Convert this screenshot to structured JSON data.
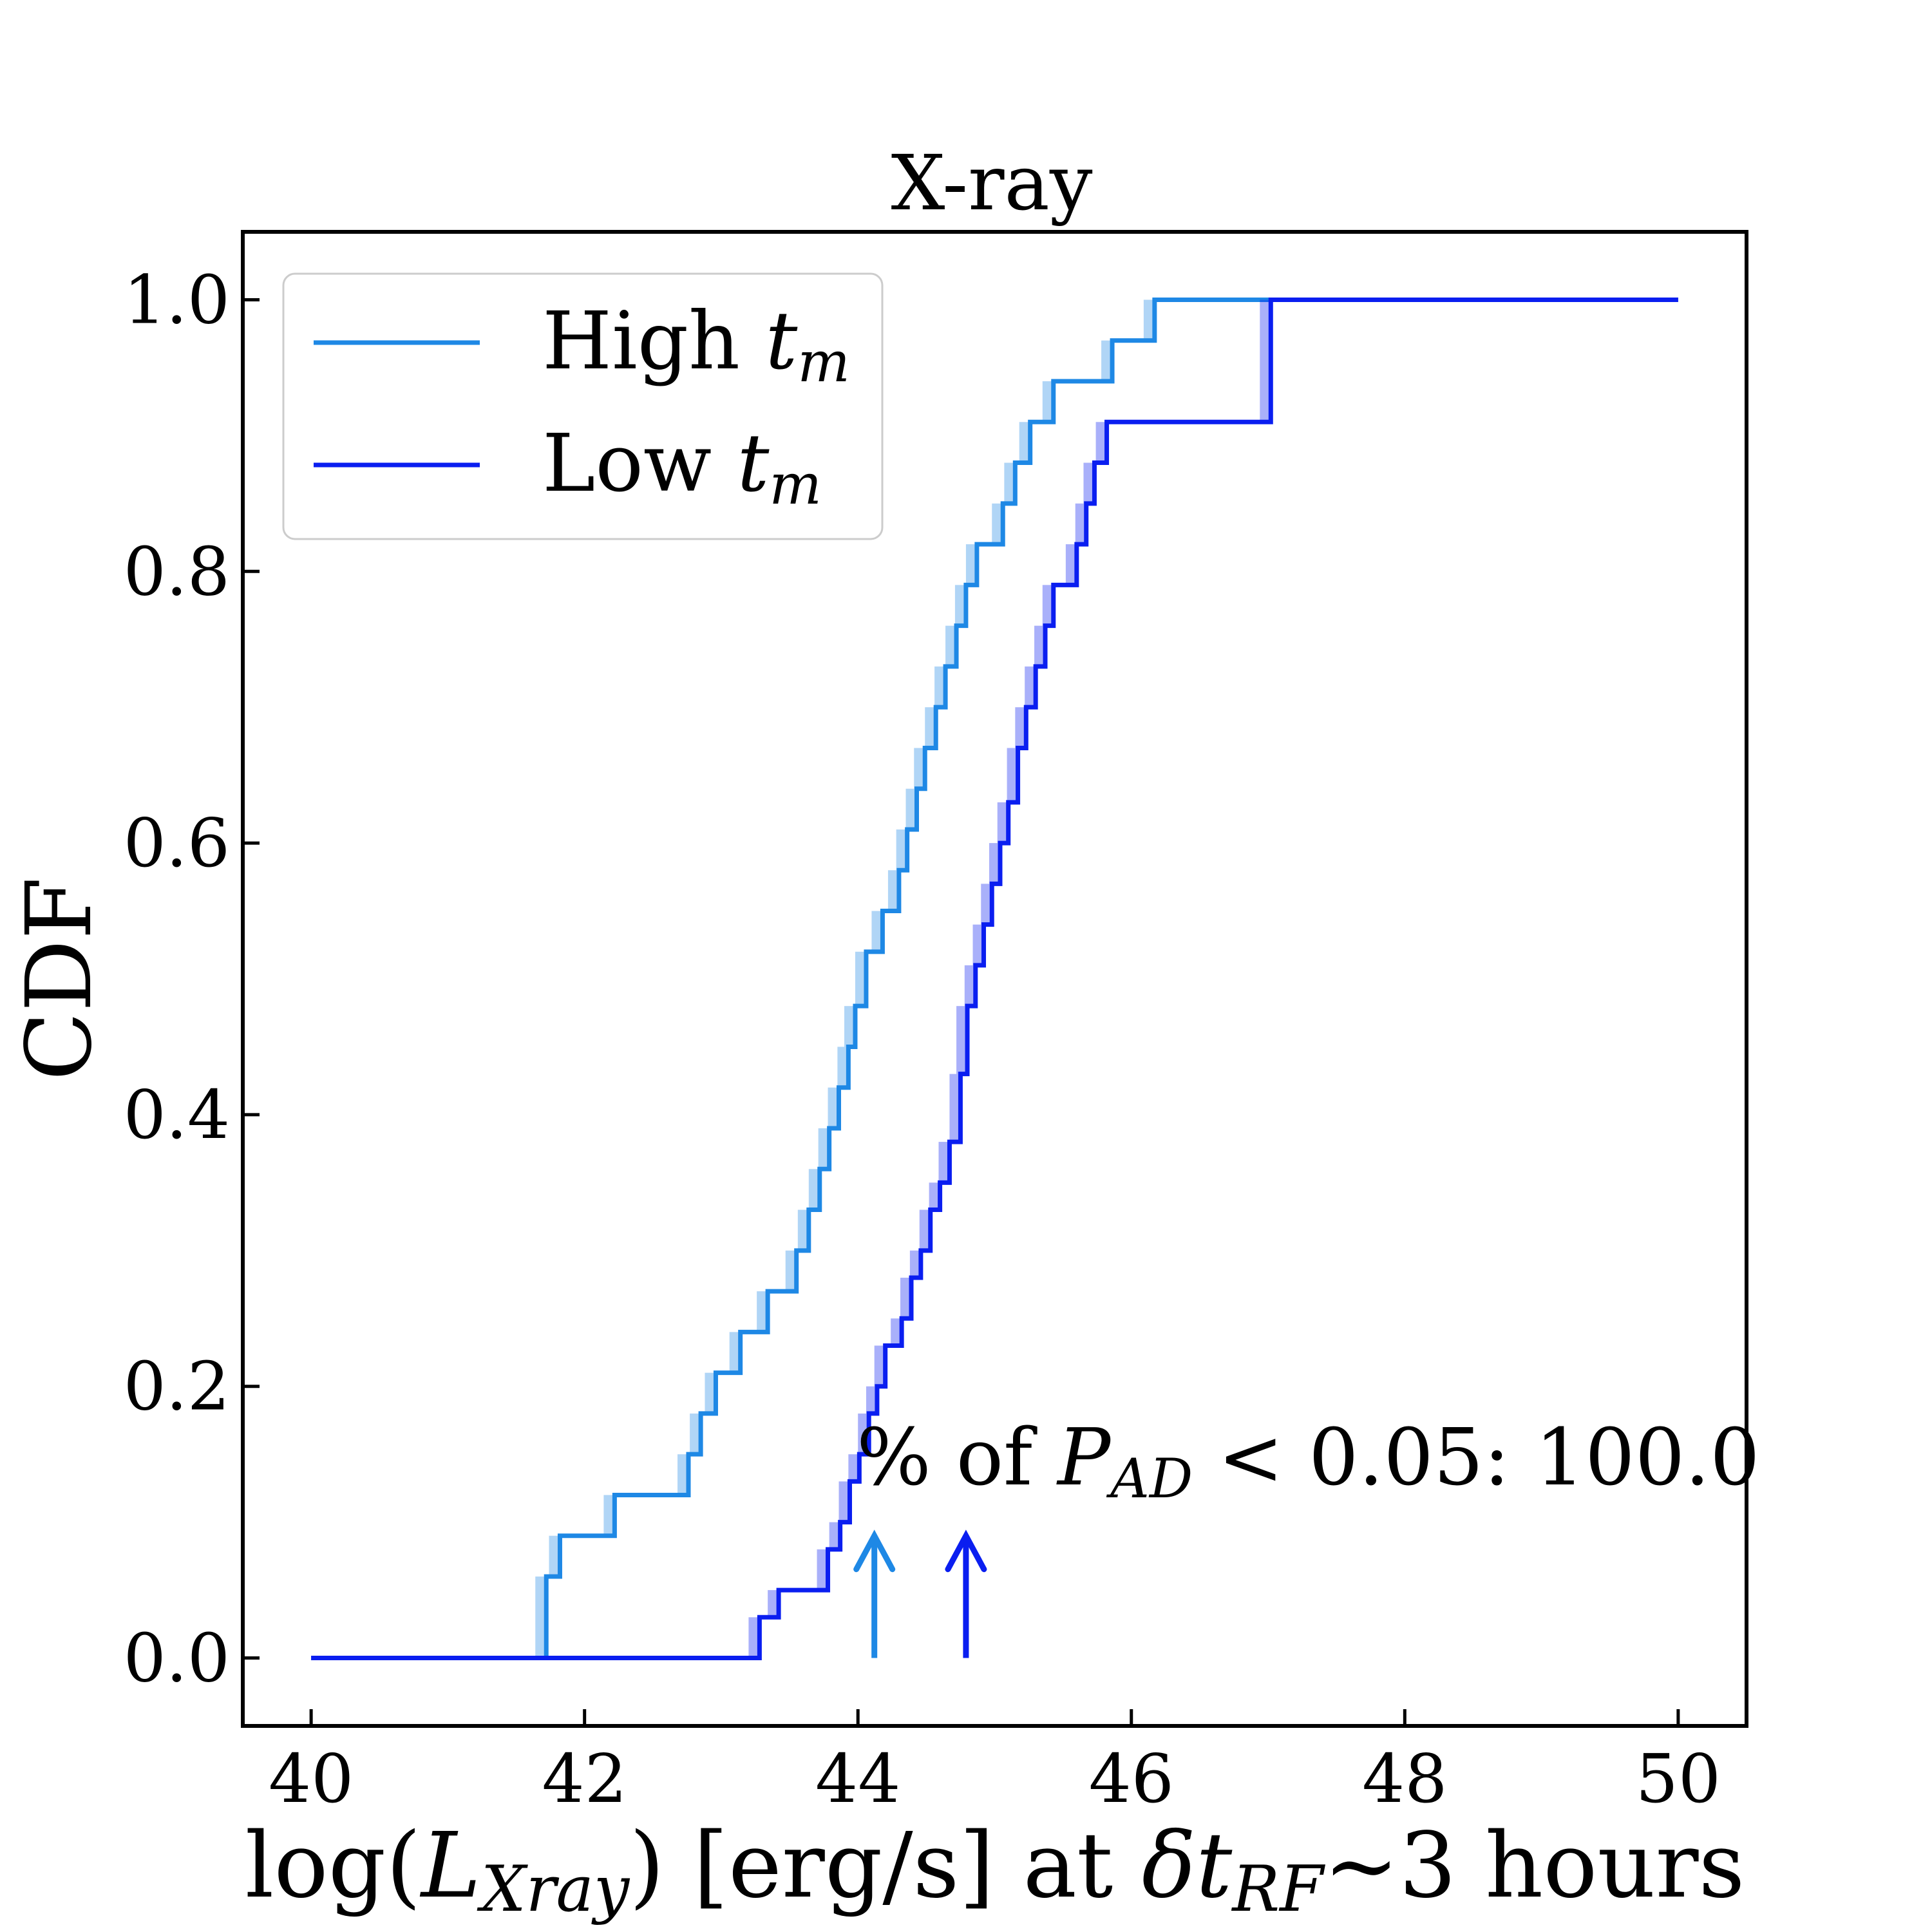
{
  "chart_data": {
    "type": "line",
    "title": "X-ray",
    "xlabel": {
      "prefix": "log(",
      "var": "L",
      "var_sub": "Xray",
      "suffix": ") [erg/s] at ",
      "delta": "δ",
      "t": "t",
      "t_sub": "RF",
      "tail": "~3 hours"
    },
    "ylabel": "CDF",
    "xlim": [
      39.5,
      50.5
    ],
    "ylim": [
      -0.05,
      1.05
    ],
    "xticks": [
      40,
      42,
      44,
      46,
      48,
      50
    ],
    "xtick_labels": [
      "40",
      "42",
      "44",
      "46",
      "48",
      "50"
    ],
    "yticks": [
      0.0,
      0.2,
      0.4,
      0.6,
      0.8,
      1.0
    ],
    "ytick_labels": [
      "0.0",
      "0.2",
      "0.4",
      "0.6",
      "0.8",
      "1.0"
    ],
    "grid": false,
    "legend_position": "top-left",
    "band_width": 0.08,
    "series": [
      {
        "name": "High",
        "name_sub": "m",
        "name_var": "t",
        "color": "#1E88E5",
        "step_x": [
          40.0,
          41.72,
          41.82,
          42.22,
          42.76,
          42.85,
          42.96,
          43.14,
          43.34,
          43.55,
          43.64,
          43.72,
          43.79,
          43.86,
          43.93,
          43.98,
          44.06,
          44.18,
          44.3,
          44.36,
          44.43,
          44.49,
          44.57,
          44.64,
          44.72,
          44.79,
          44.87,
          45.06,
          45.15,
          45.26,
          45.43,
          45.86,
          46.17,
          50.0
        ],
        "step_y": [
          0.0,
          0.06,
          0.09,
          0.12,
          0.15,
          0.18,
          0.21,
          0.24,
          0.27,
          0.3,
          0.33,
          0.36,
          0.39,
          0.42,
          0.45,
          0.48,
          0.52,
          0.55,
          0.58,
          0.61,
          0.64,
          0.67,
          0.7,
          0.73,
          0.76,
          0.79,
          0.82,
          0.85,
          0.88,
          0.91,
          0.94,
          0.97,
          1.0,
          1.0
        ],
        "median_arrow_x": 44.12
      },
      {
        "name": "Low",
        "name_sub": "m",
        "name_var": "t",
        "color": "#0A1EF0",
        "step_x": [
          40.0,
          43.28,
          43.42,
          43.78,
          43.87,
          43.94,
          44.01,
          44.08,
          44.14,
          44.2,
          44.32,
          44.39,
          44.46,
          44.53,
          44.6,
          44.67,
          44.75,
          44.8,
          44.86,
          44.92,
          44.98,
          45.04,
          45.1,
          45.17,
          45.23,
          45.3,
          45.37,
          45.43,
          45.6,
          45.67,
          45.73,
          45.82,
          47.02,
          50.0
        ],
        "step_y": [
          0.0,
          0.03,
          0.05,
          0.08,
          0.1,
          0.13,
          0.15,
          0.18,
          0.2,
          0.23,
          0.25,
          0.28,
          0.3,
          0.33,
          0.35,
          0.38,
          0.43,
          0.48,
          0.51,
          0.54,
          0.57,
          0.6,
          0.63,
          0.67,
          0.7,
          0.73,
          0.76,
          0.79,
          0.82,
          0.85,
          0.88,
          0.91,
          1.0,
          1.0
        ],
        "median_arrow_x": 44.79
      }
    ],
    "annotation": {
      "prefix": "% of ",
      "var": "P",
      "var_sub": "AD",
      "suffix": " < 0.05: 100.0"
    }
  }
}
